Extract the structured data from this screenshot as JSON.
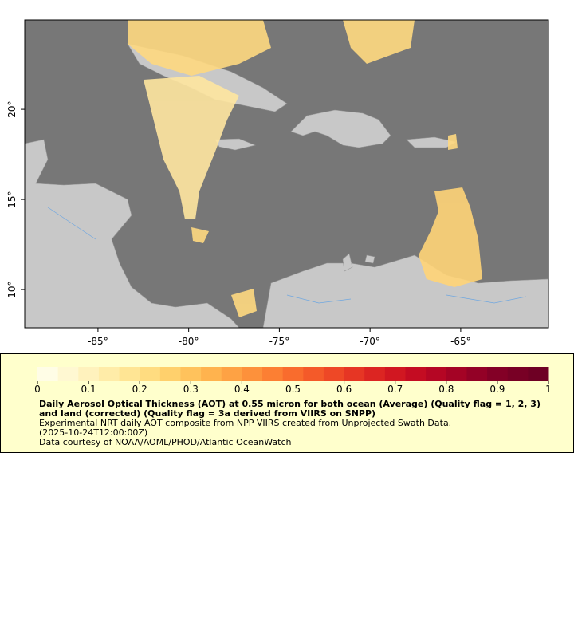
{
  "map": {
    "xlim": [
      -89.04,
      -60.16
    ],
    "ylim": [
      7.88,
      24.96
    ],
    "xticks": [
      {
        "value": -85,
        "label": "-85°"
      },
      {
        "value": -80,
        "label": "-80°"
      },
      {
        "value": -75,
        "label": "-75°"
      },
      {
        "value": -70,
        "label": "-70°"
      },
      {
        "value": -65,
        "label": "-65°"
      }
    ],
    "yticks": [
      {
        "value": 10,
        "label": "10°"
      },
      {
        "value": 15,
        "label": "15°"
      },
      {
        "value": 20,
        "label": "20°"
      }
    ]
  },
  "colorbar": {
    "lim": [
      0,
      1
    ],
    "ticks": [
      0,
      0.1,
      0.2,
      0.3,
      0.4,
      0.5,
      0.6,
      0.7,
      0.8,
      0.9,
      1
    ],
    "colors": [
      "#fffde6",
      "#fff8d2",
      "#fff2bd",
      "#ffeca8",
      "#ffe594",
      "#ffdc80",
      "#ffd06c",
      "#ffc25c",
      "#ffb34e",
      "#fea244",
      "#fd913b",
      "#fc7f33",
      "#f96c2d",
      "#f45a29",
      "#ee4826",
      "#e63624",
      "#dc2522",
      "#d11721",
      "#c40c22",
      "#b50624",
      "#a40325",
      "#930126",
      "#830026",
      "#780025",
      "#6e0024"
    ]
  },
  "caption": {
    "title": "Daily Aerosol Optical Thickness (AOT) at 0.55 micron for both ocean (Average) (Quality flag = 1, 2, 3) and land (corrected) (Quality flag = 3a derived from VIIRS on SNPP)",
    "lines": [
      "Experimental NRT daily AOT composite from NPP VIIRS created from Unprojected Swath Data.",
      "(2025-10-24T12:00:00Z)",
      "Data courtesy of NOAA/AOML/PHOD/Atlantic OceanWatch"
    ]
  }
}
